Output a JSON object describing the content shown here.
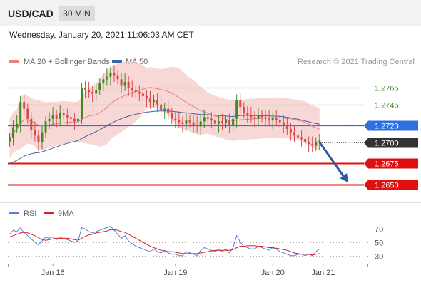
{
  "header": {
    "symbol": "USD/CAD",
    "timeframe": "30 MIN",
    "datetime": "Wednesday, January 20, 2021 11:06:03 AM CET"
  },
  "legend": {
    "ma20_label": "MA 20 + Bollinger Bands",
    "ma50_label": "MA 50",
    "copyright": "Research © 2021 Trading Central",
    "rsi_label": "RSI",
    "ma9_label": "9MA"
  },
  "colors": {
    "up": "#3d8b1f",
    "down": "#d94b4b",
    "ma20": "#e88080",
    "band": "#f6c9c9",
    "ma50": "#3a62a8",
    "resistance": "#a6cf6a",
    "pivot": "#3a6fd8",
    "support": "#e01010",
    "rsi": "#5b7fd6",
    "rsi_ma": "#d62020",
    "arrow": "#2a5aa0"
  },
  "chart_data": [
    {
      "type": "line",
      "title": "USD/CAD",
      "x_ticks": [
        "Jan 16",
        "Jan 19",
        "Jan 20",
        "Jan 21"
      ],
      "x_tick_index": [
        12,
        46,
        73,
        87
      ],
      "n_slots": 100,
      "ylim": [
        1.2632,
        1.2788
      ],
      "levels": [
        {
          "label": "1.2765",
          "value": 1.2765,
          "kind": "resistance"
        },
        {
          "label": "1.2745",
          "value": 1.2745,
          "kind": "resistance"
        },
        {
          "label": "1.2720",
          "value": 1.272,
          "kind": "pivot"
        },
        {
          "label": "1.2700",
          "value": 1.27,
          "kind": "current"
        },
        {
          "label": "1.2675",
          "value": 1.2675,
          "kind": "support"
        },
        {
          "label": "1.2650",
          "value": 1.265,
          "kind": "support"
        }
      ],
      "arrow": {
        "from": [
          86,
          1.27
        ],
        "to": [
          94,
          1.2652
        ]
      },
      "close": [
        1.2705,
        1.2718,
        1.2722,
        1.2748,
        1.274,
        1.2728,
        1.2715,
        1.2708,
        1.27,
        1.2712,
        1.2725,
        1.2728,
        1.2732,
        1.2728,
        1.2735,
        1.2732,
        1.273,
        1.2728,
        1.2725,
        1.2728,
        1.2765,
        1.2762,
        1.276,
        1.2758,
        1.2762,
        1.277,
        1.2775,
        1.2778,
        1.2783,
        1.278,
        1.2775,
        1.2768,
        1.2772,
        1.2765,
        1.2762,
        1.276,
        1.2758,
        1.2755,
        1.2752,
        1.2748,
        1.275,
        1.2745,
        1.2738,
        1.274,
        1.2735,
        1.2728,
        1.2726,
        1.2724,
        1.2722,
        1.2726,
        1.2724,
        1.2721,
        1.2719,
        1.2725,
        1.273,
        1.2728,
        1.2726,
        1.2722,
        1.2725,
        1.2723,
        1.2726,
        1.272,
        1.2728,
        1.275,
        1.2742,
        1.2735,
        1.2732,
        1.273,
        1.2728,
        1.2732,
        1.273,
        1.2728,
        1.2726,
        1.2729,
        1.2727,
        1.2724,
        1.272,
        1.2716,
        1.2712,
        1.2708,
        1.2706,
        1.2704,
        1.27,
        1.2698,
        1.2696,
        1.27,
        1.2702
      ]
    },
    {
      "type": "line",
      "title": "RSI",
      "y_ticks": [
        70,
        50,
        30
      ],
      "ylim": [
        20,
        80
      ],
      "rsi": [
        62,
        68,
        66,
        72,
        64,
        60,
        55,
        50,
        46,
        52,
        58,
        56,
        58,
        54,
        58,
        55,
        54,
        52,
        50,
        52,
        72,
        70,
        66,
        64,
        66,
        68,
        70,
        72,
        74,
        68,
        62,
        56,
        60,
        52,
        48,
        44,
        42,
        40,
        38,
        36,
        40,
        36,
        34,
        38,
        34,
        32,
        32,
        30,
        30,
        36,
        34,
        32,
        30,
        38,
        42,
        40,
        38,
        36,
        40,
        36,
        40,
        34,
        42,
        60,
        50,
        44,
        42,
        40,
        40,
        44,
        42,
        40,
        38,
        42,
        40,
        36,
        34,
        32,
        30,
        30,
        32,
        32,
        30,
        32,
        30,
        36,
        40
      ],
      "rsi_ma": [
        58,
        60,
        62,
        64,
        65,
        64,
        62,
        60,
        57,
        54,
        53,
        54,
        55,
        56,
        56,
        56,
        56,
        55,
        54,
        53,
        56,
        59,
        61,
        62,
        64,
        65,
        66,
        67,
        69,
        69,
        68,
        66,
        65,
        62,
        59,
        56,
        53,
        50,
        47,
        44,
        42,
        40,
        38,
        37,
        36,
        36,
        35,
        34,
        33,
        33,
        33,
        33,
        33,
        34,
        35,
        36,
        37,
        38,
        38,
        38,
        38,
        38,
        39,
        42,
        44,
        44,
        45,
        45,
        45,
        44,
        44,
        43,
        42,
        42,
        41,
        40,
        39,
        38,
        36,
        34,
        33,
        32,
        32,
        32,
        31,
        32,
        33
      ]
    }
  ]
}
